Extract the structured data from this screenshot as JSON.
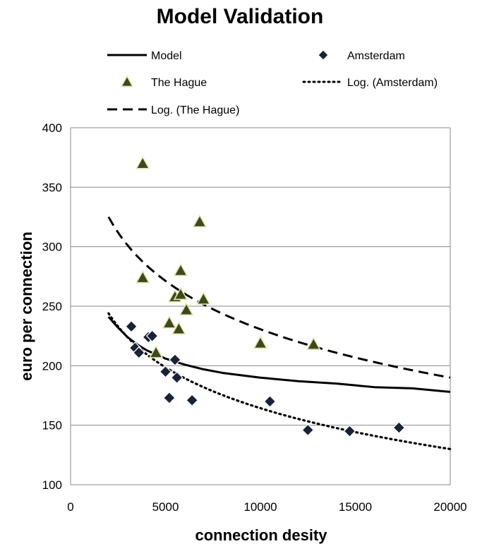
{
  "chart_data": {
    "type": "scatter",
    "title": "Model Validation",
    "xlabel": "connection desity",
    "ylabel": "euro per connection",
    "xlim": [
      0,
      20000
    ],
    "ylim": [
      100,
      400
    ],
    "xticks": [
      0,
      5000,
      10000,
      15000,
      20000
    ],
    "yticks": [
      100,
      150,
      200,
      250,
      300,
      350,
      400
    ],
    "grid": "horizontal",
    "legend_position": "top",
    "legend_order": [
      "Model",
      "Amsterdam",
      "The Hague",
      "Log. (Amsterdam)",
      "Log. (The Hague)"
    ],
    "series": [
      {
        "name": "Model",
        "kind": "line",
        "style": "solid",
        "color": "#000000",
        "x": [
          2000,
          2500,
          3000,
          3500,
          4000,
          5000,
          6000,
          7000,
          8000,
          10000,
          12000,
          14000,
          16000,
          18000,
          20000
        ],
        "y": [
          241,
          232,
          224,
          218,
          213,
          206,
          201,
          197,
          194,
          190,
          187,
          185,
          182,
          181,
          178
        ]
      },
      {
        "name": "Amsterdam",
        "kind": "scatter",
        "marker": "diamond",
        "color": "#1a2238",
        "x": [
          3200,
          3400,
          3600,
          4100,
          4300,
          5000,
          5200,
          5500,
          5600,
          6400,
          10500,
          12500,
          14700,
          17300
        ],
        "y": [
          233,
          215,
          211,
          224,
          225,
          195,
          173,
          205,
          190,
          171,
          170,
          146,
          145,
          148
        ]
      },
      {
        "name": "The Hague",
        "kind": "scatter",
        "marker": "triangle",
        "color": "#3a4a1e",
        "x": [
          3800,
          3800,
          4500,
          5200,
          5500,
          5700,
          5800,
          5800,
          6100,
          6800,
          7000,
          10000,
          12800
        ],
        "y": [
          370,
          274,
          211,
          236,
          258,
          231,
          280,
          260,
          247,
          321,
          256,
          219,
          218
        ]
      },
      {
        "name": "Log. (Amsterdam)",
        "kind": "trendline",
        "style": "dotted",
        "color": "#000000",
        "x": [
          2000,
          20000
        ],
        "y": [
          244,
          130
        ]
      },
      {
        "name": "Log. (The Hague)",
        "kind": "trendline",
        "style": "dashed",
        "color": "#000000",
        "x": [
          2000,
          20000
        ],
        "y": [
          325,
          190
        ]
      }
    ]
  }
}
